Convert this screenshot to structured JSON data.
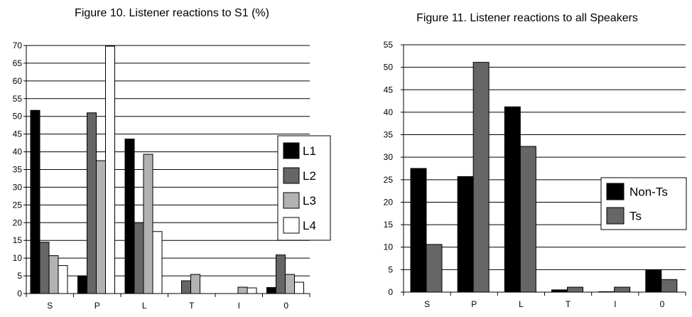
{
  "chart_data": [
    {
      "type": "bar",
      "title": "Figure 10. Listener reactions to S1 (%)",
      "xlabel": "",
      "ylabel": "",
      "categories": [
        "S",
        "P",
        "L",
        "T",
        "I",
        "0"
      ],
      "ylim": [
        0,
        70
      ],
      "yticks": [
        0,
        5,
        10,
        15,
        20,
        25,
        30,
        35,
        40,
        45,
        50,
        55,
        60,
        65,
        70
      ],
      "grid": true,
      "legend": "right",
      "series": [
        {
          "name": "L1",
          "color": "#000000",
          "values": [
            51.7,
            5.0,
            43.6,
            0.0,
            0.0,
            1.7
          ]
        },
        {
          "name": "L2",
          "color": "#666666",
          "values": [
            14.5,
            51.0,
            20.0,
            3.6,
            0.0,
            10.9
          ]
        },
        {
          "name": "L3",
          "color": "#b2b2b2",
          "values": [
            10.7,
            37.5,
            39.3,
            5.4,
            1.8,
            5.4
          ]
        },
        {
          "name": "L4",
          "color": "#ffffff",
          "values": [
            7.9,
            69.8,
            17.5,
            0.0,
            1.6,
            3.2
          ]
        }
      ]
    },
    {
      "type": "bar",
      "title": "Figure 11. Listener reactions to all Speakers",
      "xlabel": "",
      "ylabel": "",
      "categories": [
        "S",
        "P",
        "L",
        "T",
        "I",
        "0"
      ],
      "ylim": [
        0,
        55
      ],
      "yticks": [
        0,
        5,
        10,
        15,
        20,
        25,
        30,
        35,
        40,
        45,
        50,
        55
      ],
      "grid": true,
      "legend": "right",
      "series": [
        {
          "name": "Non-Ts",
          "color": "#000000",
          "values": [
            27.5,
            25.7,
            41.2,
            0.5,
            0.1,
            4.9
          ]
        },
        {
          "name": "Ts",
          "color": "#666666",
          "values": [
            10.6,
            51.1,
            32.4,
            1.1,
            1.1,
            2.8
          ]
        }
      ]
    }
  ]
}
